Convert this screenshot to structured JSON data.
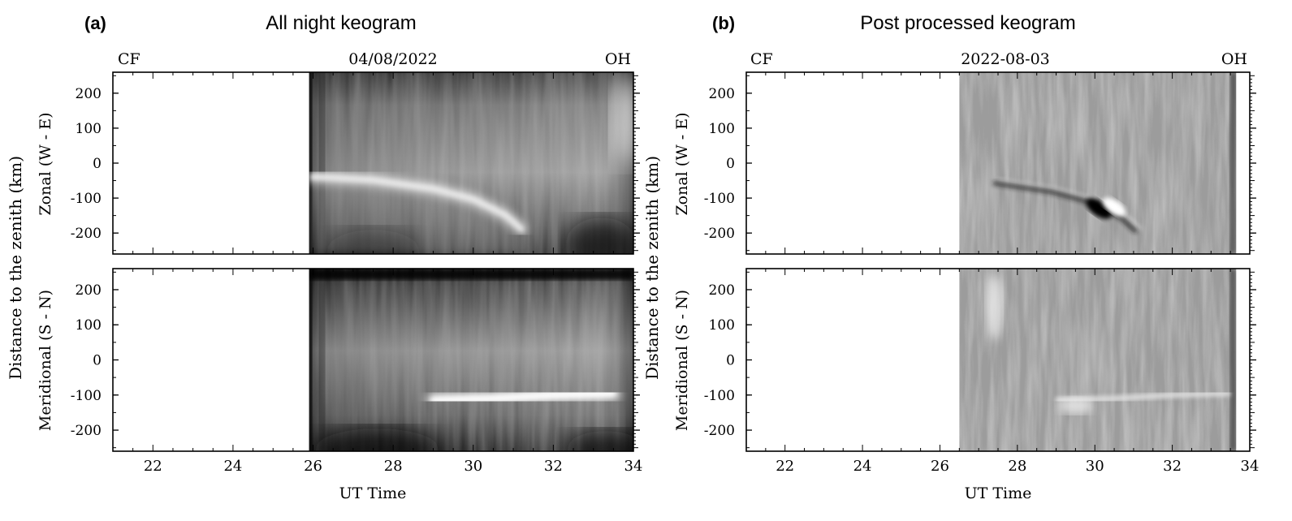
{
  "panels": [
    {
      "letter": "(a)",
      "title": "All night keogram",
      "left_label": "CF",
      "center_label": "04/08/2022",
      "right_label": "OH",
      "data_start_ut": 25.9,
      "style": "raw"
    },
    {
      "letter": "(b)",
      "title": "Post processed keogram",
      "left_label": "CF",
      "center_label": "2022-08-03",
      "right_label": "OH",
      "data_start_ut": 26.5,
      "data_end_ut": 33.65,
      "style": "filtered"
    }
  ],
  "chart_data": {
    "type": "heatmap",
    "xlabel": "UT Time",
    "ylabel": "Distance to the zenith (km)",
    "xlim": [
      21,
      34
    ],
    "ylim": [
      -260,
      260
    ],
    "x_ticks": [
      22,
      24,
      26,
      28,
      30,
      32,
      34
    ],
    "y_ticks": [
      200,
      100,
      0,
      -100,
      -200
    ],
    "subplots": [
      {
        "row": "zonal",
        "ylabel": "Zonal (W - E)"
      },
      {
        "row": "meridional",
        "ylabel": "Meridional (S - N)"
      }
    ],
    "features": {
      "zonal_arc": {
        "description_points_ut_km": [
          [
            26.0,
            -40
          ],
          [
            27.5,
            -50
          ],
          [
            29.0,
            -75
          ],
          [
            30.0,
            -105
          ],
          [
            30.8,
            -150
          ],
          [
            31.2,
            -190
          ]
        ]
      },
      "meridional_band": {
        "description_points_ut_km": [
          [
            29.0,
            -115
          ],
          [
            30.5,
            -110
          ],
          [
            32.0,
            -100
          ],
          [
            33.5,
            -95
          ]
        ]
      }
    }
  }
}
